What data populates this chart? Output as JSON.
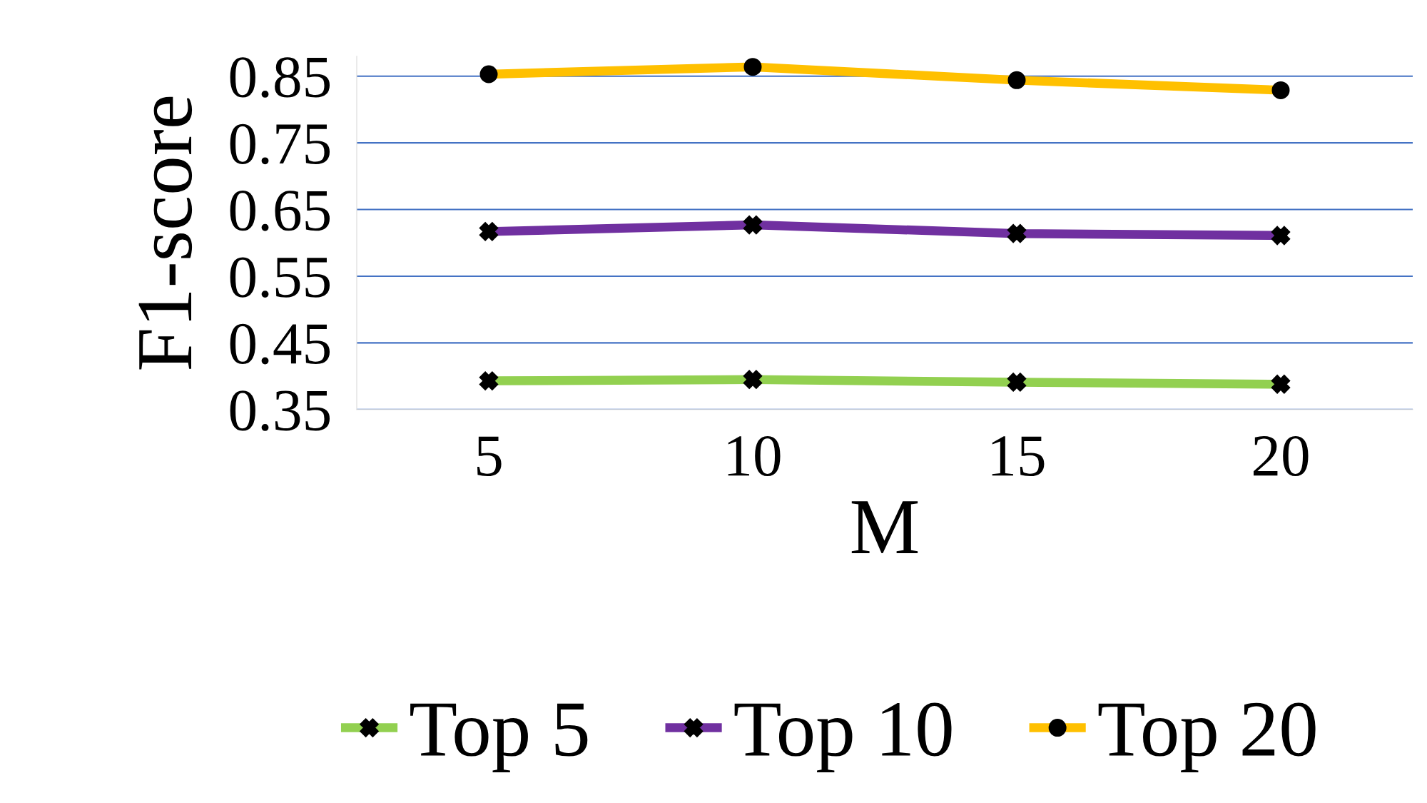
{
  "chart_data": {
    "type": "line",
    "xlabel": "M",
    "ylabel": "F1-score",
    "categories": [
      "5",
      "10",
      "15",
      "20"
    ],
    "series": [
      {
        "name": "Top 5",
        "color": "#92d050",
        "marker": "cross",
        "values": [
          0.393,
          0.395,
          0.391,
          0.388
        ]
      },
      {
        "name": "Top 10",
        "color": "#7030a0",
        "marker": "cross",
        "values": [
          0.617,
          0.627,
          0.614,
          0.611
        ]
      },
      {
        "name": "Top 20",
        "color": "#ffc000",
        "marker": "circle",
        "values": [
          0.853,
          0.864,
          0.844,
          0.829
        ]
      }
    ],
    "ylim": [
      0.35,
      0.88
    ],
    "yticks": [
      0.35,
      0.45,
      0.55,
      0.65,
      0.75,
      0.85
    ],
    "grid": "y",
    "legend": "bottom",
    "line_style": "solid"
  }
}
